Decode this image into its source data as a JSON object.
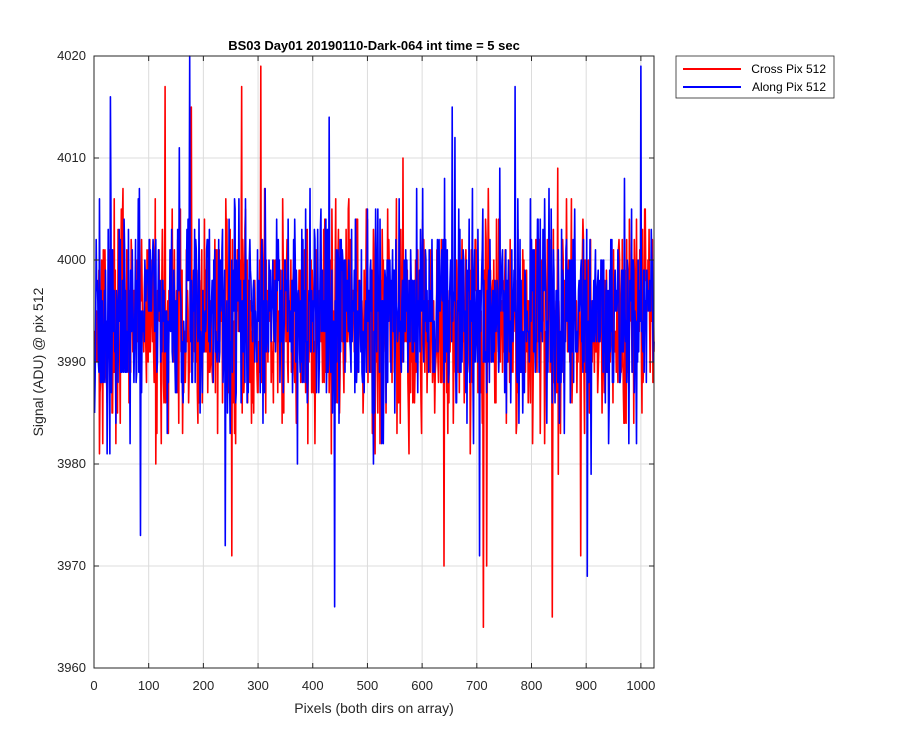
{
  "chart_data": {
    "type": "line",
    "title": "BS03 Day01 20190110-Dark-064 int time = 5 sec",
    "xlabel": "Pixels (both dirs on array)",
    "ylabel": "Signal (ADU) @ pix 512",
    "xlim": [
      0,
      1024
    ],
    "ylim": [
      3960,
      4020
    ],
    "xticks": [
      0,
      100,
      200,
      300,
      400,
      500,
      600,
      700,
      800,
      900,
      1000
    ],
    "yticks": [
      3960,
      3970,
      3980,
      3990,
      4000,
      4010,
      4020
    ],
    "grid": true,
    "legend_position": "outside-top-right",
    "series_summary": {
      "points_per_series": 1024,
      "x_start": 1,
      "x_end": 1024
    },
    "series": [
      {
        "name": "Cross Pix 512",
        "color": "#ff0000",
        "center": 3994,
        "spread": 5.5,
        "seed": 17,
        "extremes": [
          {
            "x": 305,
            "y": 4019
          },
          {
            "x": 270,
            "y": 4017
          },
          {
            "x": 130,
            "y": 4017
          },
          {
            "x": 712,
            "y": 3964
          },
          {
            "x": 838,
            "y": 3965
          },
          {
            "x": 640,
            "y": 3970
          },
          {
            "x": 718,
            "y": 3970
          },
          {
            "x": 252,
            "y": 3971
          },
          {
            "x": 890,
            "y": 3971
          },
          {
            "x": 565,
            "y": 4010
          },
          {
            "x": 178,
            "y": 4015
          }
        ]
      },
      {
        "name": "Along Pix 512",
        "color": "#0000ff",
        "center": 3995,
        "spread": 5.5,
        "seed": 91,
        "extremes": [
          {
            "x": 175,
            "y": 4020
          },
          {
            "x": 30,
            "y": 4016
          },
          {
            "x": 430,
            "y": 4014
          },
          {
            "x": 770,
            "y": 4017
          },
          {
            "x": 1000,
            "y": 4019
          },
          {
            "x": 440,
            "y": 3966
          },
          {
            "x": 902,
            "y": 3969
          },
          {
            "x": 85,
            "y": 3973
          },
          {
            "x": 240,
            "y": 3972
          },
          {
            "x": 705,
            "y": 3971
          },
          {
            "x": 655,
            "y": 4015
          }
        ]
      }
    ]
  }
}
